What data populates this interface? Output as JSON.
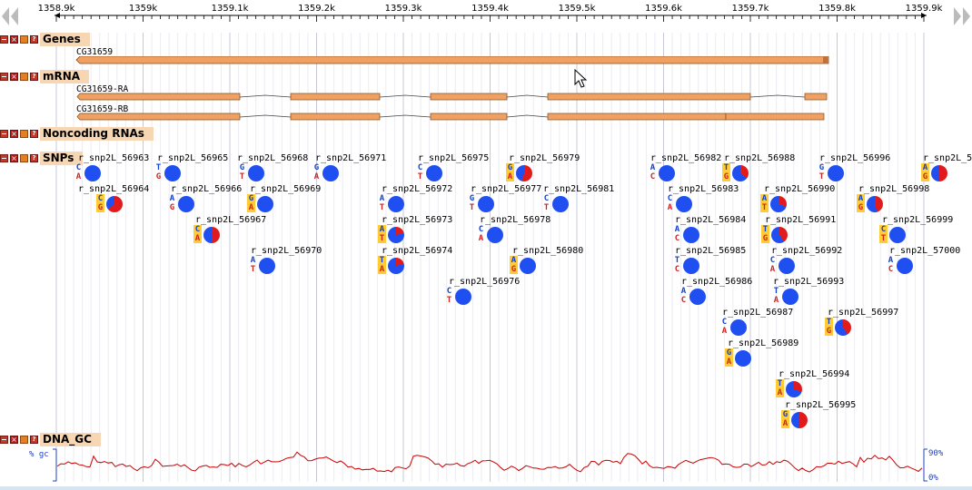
{
  "ruler": {
    "ticks": [
      "1358.9k",
      "1359k",
      "1359.1k",
      "1359.2k",
      "1359.3k",
      "1359.4k",
      "1359.5k",
      "1359.6k",
      "1359.7k",
      "1359.8k",
      "1359.9k"
    ],
    "nav_left_icon": "double-arrow-left-icon",
    "nav_right_icon": "double-arrow-right-icon"
  },
  "tracks": {
    "genes": {
      "label": "Genes",
      "features": [
        {
          "name": "CG31659"
        }
      ]
    },
    "mrna": {
      "label": "mRNA",
      "features": [
        {
          "name": "CG31659-RA"
        },
        {
          "name": "CG31659-RB"
        }
      ]
    },
    "noncoding": {
      "label": "Noncoding RNAs"
    },
    "snps": {
      "label": "SNPs"
    },
    "dna_gc": {
      "label": "DNA_GC",
      "axis_label": "% gc",
      "max_label": "90%",
      "min_label": "0%"
    }
  },
  "colors": {
    "ref_allele": "#1040d0",
    "alt_allele": "#d02020",
    "pie_major": "#1f4ff0",
    "pie_minor": "#e11b1b",
    "gene_bar": "#f0a060",
    "label_bg": "#f7d6b4",
    "gc_line": "#cc0000"
  },
  "snps": [
    {
      "name": "r_snp2L_56963",
      "ref": "C",
      "alt": "A",
      "minor": 0,
      "hl": false
    },
    {
      "name": "r_snp2L_56964",
      "ref": "C",
      "alt": "G",
      "minor": 0.65,
      "hl": true
    },
    {
      "name": "r_snp2L_56965",
      "ref": "T",
      "alt": "G",
      "minor": 0,
      "hl": false
    },
    {
      "name": "r_snp2L_56966",
      "ref": "A",
      "alt": "G",
      "minor": 0,
      "hl": false
    },
    {
      "name": "r_snp2L_56967",
      "ref": "C",
      "alt": "A",
      "minor": 0.5,
      "hl": true
    },
    {
      "name": "r_snp2L_56968",
      "ref": "G",
      "alt": "T",
      "minor": 0,
      "hl": false
    },
    {
      "name": "r_snp2L_56969",
      "ref": "G",
      "alt": "A",
      "minor": 0,
      "hl": true
    },
    {
      "name": "r_snp2L_56970",
      "ref": "A",
      "alt": "T",
      "minor": 0,
      "hl": false
    },
    {
      "name": "r_snp2L_56971",
      "ref": "G",
      "alt": "A",
      "minor": 0,
      "hl": false
    },
    {
      "name": "r_snp2L_56972",
      "ref": "A",
      "alt": "T",
      "minor": 0,
      "hl": false
    },
    {
      "name": "r_snp2L_56973",
      "ref": "A",
      "alt": "T",
      "minor": 0.2,
      "hl": true
    },
    {
      "name": "r_snp2L_56974",
      "ref": "T",
      "alt": "A",
      "minor": 0.2,
      "hl": true
    },
    {
      "name": "r_snp2L_56975",
      "ref": "C",
      "alt": "T",
      "minor": 0,
      "hl": false
    },
    {
      "name": "r_snp2L_56976",
      "ref": "C",
      "alt": "T",
      "minor": 0,
      "hl": false
    },
    {
      "name": "r_snp2L_56977",
      "ref": "G",
      "alt": "T",
      "minor": 0,
      "hl": false
    },
    {
      "name": "r_snp2L_56978",
      "ref": "C",
      "alt": "A",
      "minor": 0,
      "hl": false
    },
    {
      "name": "r_snp2L_56979",
      "ref": "G",
      "alt": "A",
      "minor": 0.55,
      "hl": true
    },
    {
      "name": "r_snp2L_56980",
      "ref": "A",
      "alt": "G",
      "minor": 0,
      "hl": true
    },
    {
      "name": "r_snp2L_56981",
      "ref": "C",
      "alt": "T",
      "minor": 0,
      "hl": false
    },
    {
      "name": "r_snp2L_56982",
      "ref": "A",
      "alt": "C",
      "minor": 0,
      "hl": false
    },
    {
      "name": "r_snp2L_56983",
      "ref": "C",
      "alt": "A",
      "minor": 0,
      "hl": false
    },
    {
      "name": "r_snp2L_56984",
      "ref": "A",
      "alt": "C",
      "minor": 0,
      "hl": false
    },
    {
      "name": "r_snp2L_56985",
      "ref": "T",
      "alt": "C",
      "minor": 0,
      "hl": false
    },
    {
      "name": "r_snp2L_56986",
      "ref": "A",
      "alt": "C",
      "minor": 0,
      "hl": false
    },
    {
      "name": "r_snp2L_56987",
      "ref": "C",
      "alt": "A",
      "minor": 0,
      "hl": false
    },
    {
      "name": "r_snp2L_56988",
      "ref": "T",
      "alt": "G",
      "minor": 0.35,
      "hl": true
    },
    {
      "name": "r_snp2L_56989",
      "ref": "G",
      "alt": "A",
      "minor": 0,
      "hl": true
    },
    {
      "name": "r_snp2L_56990",
      "ref": "A",
      "alt": "T",
      "minor": 0.3,
      "hl": true
    },
    {
      "name": "r_snp2L_56991",
      "ref": "T",
      "alt": "G",
      "minor": 0.4,
      "hl": true
    },
    {
      "name": "r_snp2L_56992",
      "ref": "C",
      "alt": "A",
      "minor": 0,
      "hl": false
    },
    {
      "name": "r_snp2L_56993",
      "ref": "T",
      "alt": "A",
      "minor": 0,
      "hl": false
    },
    {
      "name": "r_snp2L_56994",
      "ref": "T",
      "alt": "A",
      "minor": 0.3,
      "hl": true
    },
    {
      "name": "r_snp2L_56995",
      "ref": "G",
      "alt": "A",
      "minor": 0.5,
      "hl": true
    },
    {
      "name": "r_snp2L_56996",
      "ref": "G",
      "alt": "T",
      "minor": 0,
      "hl": false
    },
    {
      "name": "r_snp2L_56997",
      "ref": "T",
      "alt": "G",
      "minor": 0.4,
      "hl": true
    },
    {
      "name": "r_snp2L_56998",
      "ref": "A",
      "alt": "G",
      "minor": 0.45,
      "hl": true
    },
    {
      "name": "r_snp2L_56999",
      "ref": "C",
      "alt": "T",
      "minor": 0,
      "hl": true
    },
    {
      "name": "r_snp2L_57000",
      "ref": "A",
      "alt": "C",
      "minor": 0,
      "hl": false
    },
    {
      "name": "r_snp2L_5",
      "ref": "A",
      "alt": "G",
      "minor": 0.5,
      "hl": true
    }
  ]
}
